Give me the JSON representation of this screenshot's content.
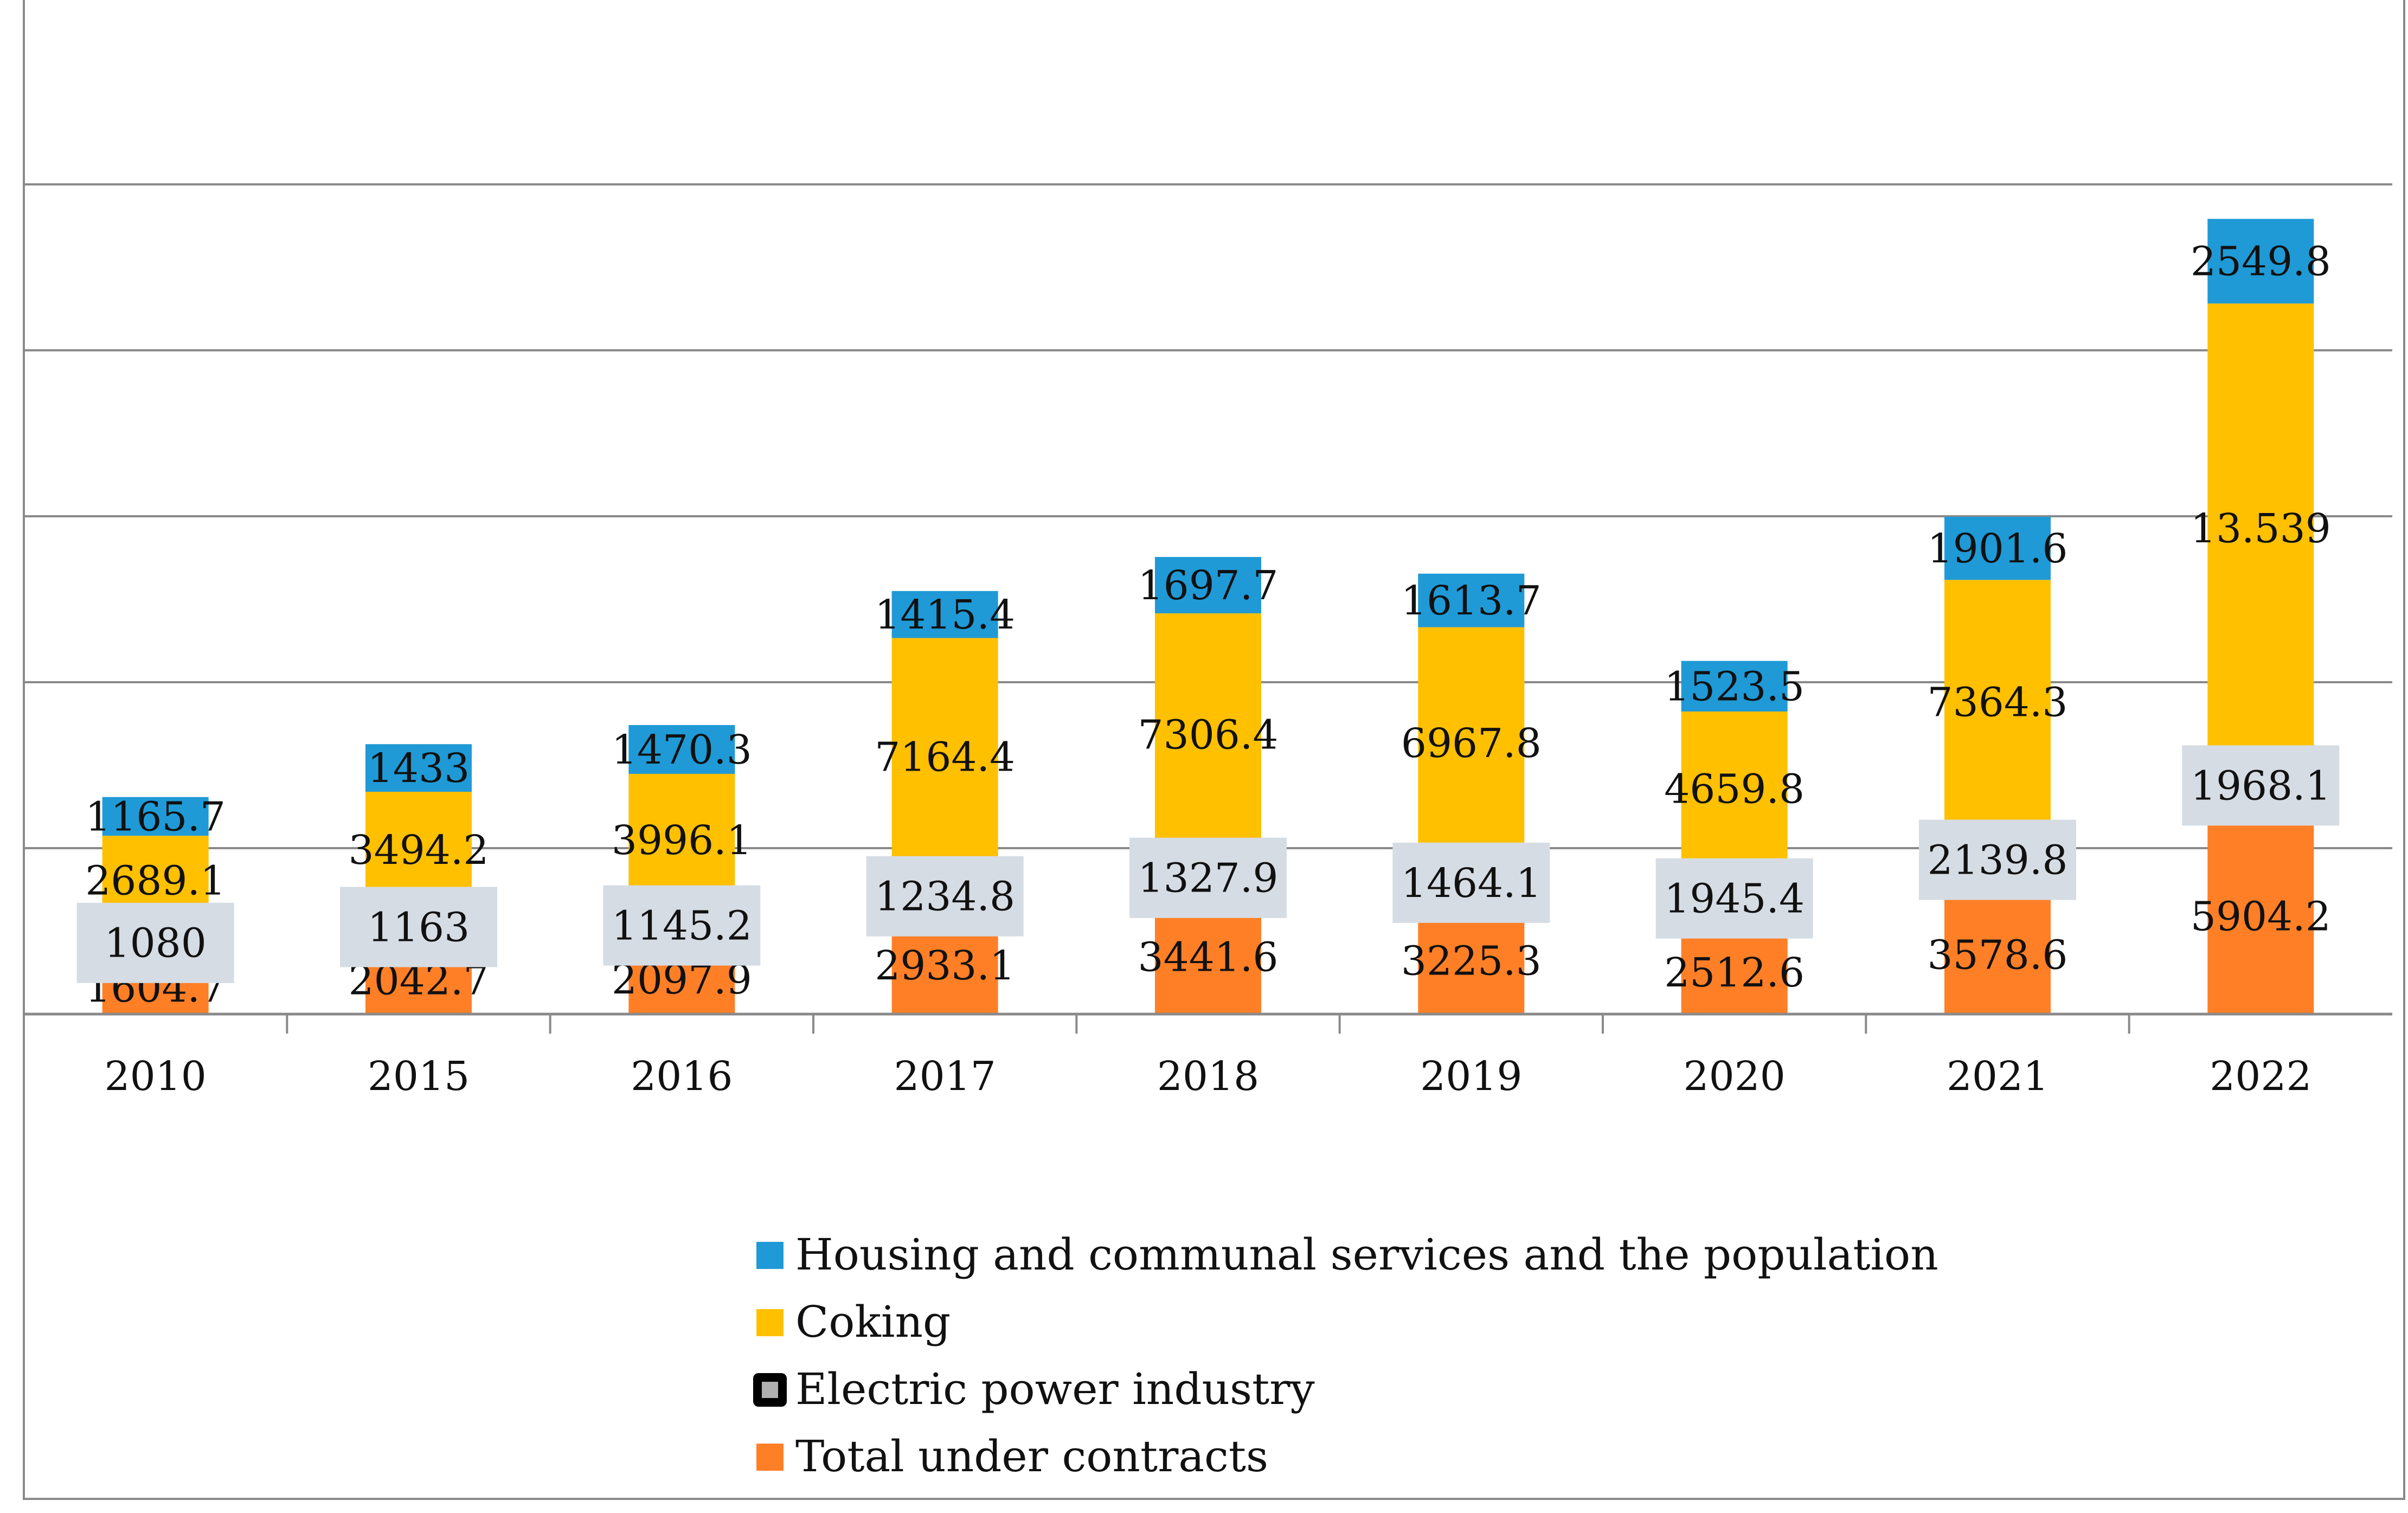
{
  "chart_data": {
    "type": "bar",
    "stacked": true,
    "title": "",
    "xlabel": "",
    "ylabel": "",
    "ylim": [
      0,
      25000
    ],
    "grid": true,
    "categories": [
      "2010",
      "2015",
      "2016",
      "2017",
      "2018",
      "2019",
      "2020",
      "2021",
      "2022"
    ],
    "series": [
      {
        "name": "Total under contracts",
        "color": "#ff7f27",
        "values": [
          1604.7,
          2042.7,
          2097.9,
          2933.1,
          3441.6,
          3225.3,
          2512.6,
          3578.6,
          5904.2
        ],
        "labels": [
          "1604.7",
          "2042.7",
          "2097.9",
          "2933.1",
          "3441.6",
          "3225.3",
          "2512.6",
          "3578.6",
          "5904.2"
        ]
      },
      {
        "name": "Electric power industry",
        "color": "#b0b0b0",
        "values": [
          1080,
          1163,
          1145.2,
          1234.8,
          1327.9,
          1464.1,
          1945.4,
          2139.8,
          1968.1
        ],
        "labels": [
          "1080",
          "1163",
          "1145.2",
          "1234.8",
          "1327.9",
          "1464.1",
          "1945.4",
          "2139.8",
          "1968.1"
        ]
      },
      {
        "name": "Coking",
        "color": "#ffc000",
        "values": [
          2689.1,
          3494.2,
          3996.1,
          7164.4,
          7306.4,
          6967.8,
          4659.8,
          7364.3,
          13539
        ],
        "labels": [
          "2689.1",
          "3494.2",
          "3996.1",
          "7164.4",
          "7306.4",
          "6967.8",
          "4659.8",
          "7364.3",
          "13.539"
        ]
      },
      {
        "name": "Housing and communal services and the population",
        "color": "#1f9ad6",
        "values": [
          1165.7,
          1433,
          1470.3,
          1415.4,
          1697.7,
          1613.7,
          1523.5,
          1901.6,
          2549.8
        ],
        "labels": [
          "1165.7",
          "1433",
          "1470.3",
          "1415.4",
          "1697.7",
          "1613.7",
          "1523.5",
          "1901.6",
          "2549.8"
        ]
      }
    ],
    "legend": {
      "placement": "bottom",
      "order": [
        "Housing and communal services and the population",
        "Coking",
        "Electric power industry",
        "Total under contracts"
      ]
    }
  }
}
